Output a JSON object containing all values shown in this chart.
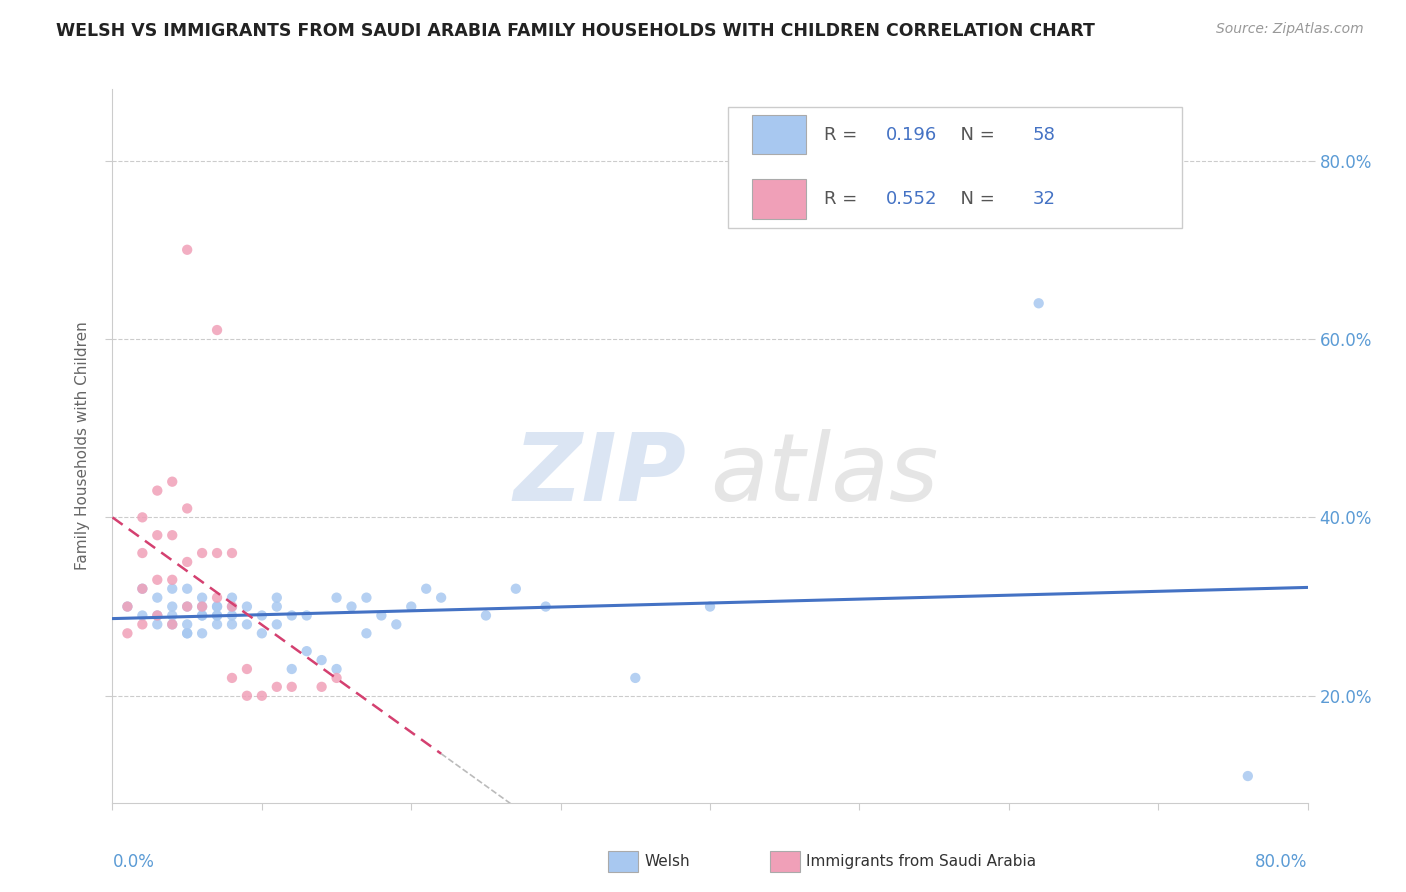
{
  "title": "WELSH VS IMMIGRANTS FROM SAUDI ARABIA FAMILY HOUSEHOLDS WITH CHILDREN CORRELATION CHART",
  "source": "Source: ZipAtlas.com",
  "ylabel": "Family Households with Children",
  "ytick_vals": [
    0.2,
    0.4,
    0.6,
    0.8
  ],
  "xlim": [
    0.0,
    0.8
  ],
  "ylim": [
    0.08,
    0.88
  ],
  "welsh_color": "#a8c8f0",
  "saudi_color": "#f0a0b8",
  "welsh_R": 0.196,
  "welsh_N": 58,
  "saudi_R": 0.552,
  "saudi_N": 32,
  "welsh_line_color": "#4472c4",
  "saudi_line_color": "#d44070",
  "legend_label1": "Welsh",
  "legend_label2": "Immigrants from Saudi Arabia",
  "welsh_points_x": [
    0.01,
    0.02,
    0.02,
    0.03,
    0.03,
    0.03,
    0.04,
    0.04,
    0.04,
    0.04,
    0.05,
    0.05,
    0.05,
    0.05,
    0.05,
    0.06,
    0.06,
    0.06,
    0.06,
    0.06,
    0.07,
    0.07,
    0.07,
    0.07,
    0.07,
    0.08,
    0.08,
    0.08,
    0.08,
    0.09,
    0.09,
    0.1,
    0.1,
    0.11,
    0.11,
    0.11,
    0.12,
    0.12,
    0.13,
    0.13,
    0.14,
    0.15,
    0.15,
    0.16,
    0.17,
    0.17,
    0.18,
    0.19,
    0.2,
    0.21,
    0.22,
    0.25,
    0.27,
    0.29,
    0.35,
    0.4,
    0.62,
    0.76
  ],
  "welsh_points_y": [
    0.3,
    0.29,
    0.32,
    0.28,
    0.31,
    0.29,
    0.3,
    0.28,
    0.32,
    0.29,
    0.27,
    0.3,
    0.28,
    0.32,
    0.27,
    0.29,
    0.3,
    0.27,
    0.31,
    0.29,
    0.29,
    0.3,
    0.28,
    0.3,
    0.29,
    0.28,
    0.31,
    0.3,
    0.29,
    0.28,
    0.3,
    0.27,
    0.29,
    0.31,
    0.28,
    0.3,
    0.23,
    0.29,
    0.25,
    0.29,
    0.24,
    0.23,
    0.31,
    0.3,
    0.31,
    0.27,
    0.29,
    0.28,
    0.3,
    0.32,
    0.31,
    0.29,
    0.32,
    0.3,
    0.22,
    0.3,
    0.64,
    0.11
  ],
  "saudi_points_x": [
    0.01,
    0.01,
    0.02,
    0.02,
    0.02,
    0.02,
    0.03,
    0.03,
    0.03,
    0.03,
    0.04,
    0.04,
    0.04,
    0.04,
    0.05,
    0.05,
    0.05,
    0.06,
    0.06,
    0.07,
    0.07,
    0.07,
    0.08,
    0.08,
    0.08,
    0.09,
    0.09,
    0.1,
    0.11,
    0.12,
    0.14,
    0.15
  ],
  "saudi_points_y": [
    0.27,
    0.3,
    0.28,
    0.32,
    0.36,
    0.4,
    0.29,
    0.33,
    0.38,
    0.43,
    0.28,
    0.33,
    0.38,
    0.44,
    0.3,
    0.35,
    0.41,
    0.3,
    0.36,
    0.31,
    0.36,
    0.61,
    0.3,
    0.36,
    0.22,
    0.23,
    0.2,
    0.2,
    0.21,
    0.21,
    0.21,
    0.22
  ],
  "saudi_outlier_x": [
    0.05
  ],
  "saudi_outlier_y": [
    0.7
  ]
}
